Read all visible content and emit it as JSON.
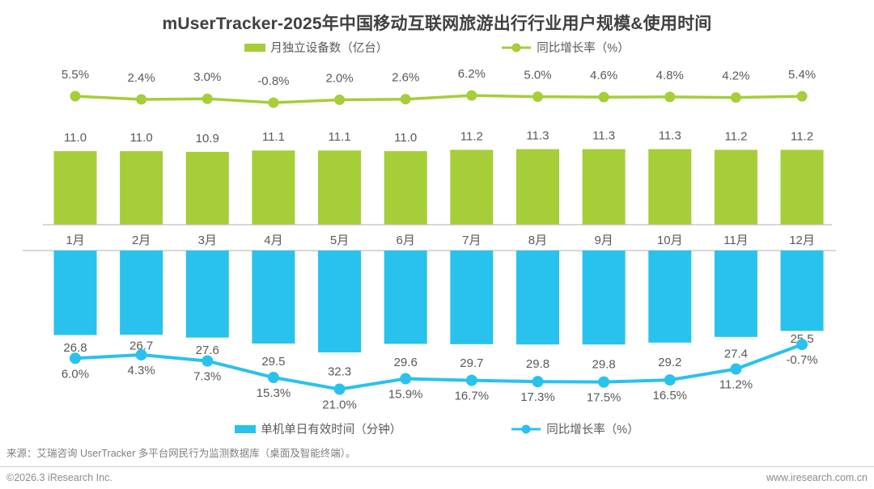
{
  "title": "mUserTracker-2025年中国移动互联网旅游出行行业用户规模&使用时间",
  "colors": {
    "bar_green": "#a5ce39",
    "bar_blue": "#29c2ec",
    "label_gray": "#595959",
    "axis_gray": "#bfbfbf"
  },
  "legend_top": [
    {
      "label": "月独立设备数（亿台）",
      "marker": "green-bar-swatch"
    },
    {
      "label": "同比增长率（%）",
      "marker": "green-line-marker"
    }
  ],
  "legend_bottom": [
    {
      "label": "单机单日有效时间（分钟）",
      "marker": "blue-bar-swatch"
    },
    {
      "label": "同比增长率（%）",
      "marker": "blue-line-marker"
    }
  ],
  "chart_data": [
    {
      "type": "bar",
      "title": "月独立设备数（亿台）与同比增长率（%）",
      "categories": [
        "1月",
        "2月",
        "3月",
        "4月",
        "5月",
        "6月",
        "7月",
        "8月",
        "9月",
        "10月",
        "11月",
        "12月"
      ],
      "series": [
        {
          "name": "月独立设备数（亿台）",
          "type": "bar",
          "values": [
            11.0,
            11.0,
            10.9,
            11.1,
            11.1,
            11.0,
            11.2,
            11.3,
            11.3,
            11.3,
            11.2,
            11.2
          ]
        },
        {
          "name": "同比增长率（%）",
          "type": "line",
          "values": [
            5.5,
            2.4,
            3.0,
            -0.8,
            2.0,
            2.6,
            6.2,
            5.0,
            4.6,
            4.8,
            4.2,
            5.4
          ]
        }
      ],
      "legend_position": "top",
      "grid": false,
      "data_labels": true
    },
    {
      "type": "bar",
      "title": "单机单日有效时间（分钟）与同比增长率（%）",
      "orientation": "downward",
      "categories": [
        "1月",
        "2月",
        "3月",
        "4月",
        "5月",
        "6月",
        "7月",
        "8月",
        "9月",
        "10月",
        "11月",
        "12月"
      ],
      "series": [
        {
          "name": "单机单日有效时间（分钟）",
          "type": "bar",
          "values": [
            26.8,
            26.7,
            27.6,
            29.5,
            32.3,
            29.6,
            29.7,
            29.8,
            29.8,
            29.2,
            27.4,
            25.5
          ]
        },
        {
          "name": "同比增长率（%）",
          "type": "line",
          "values": [
            6.0,
            4.3,
            7.3,
            15.3,
            21.0,
            15.9,
            16.7,
            17.3,
            17.5,
            16.5,
            11.2,
            -0.7
          ]
        }
      ],
      "legend_position": "bottom",
      "grid": false,
      "data_labels": true
    }
  ],
  "source": "来源：艾瑞咨询 UserTracker 多平台网民行为监测数据库（桌面及智能终端）。",
  "footer": {
    "left": "©2026.3 iResearch Inc.",
    "right": "www.iresearch.com.cn"
  }
}
